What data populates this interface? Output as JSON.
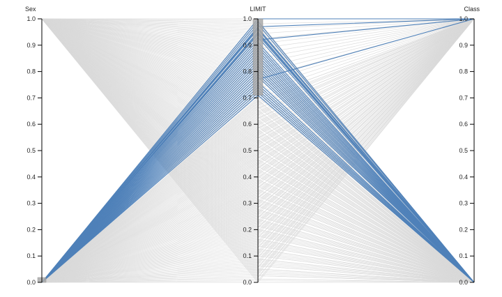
{
  "chart_data": {
    "type": "parallel-coordinates",
    "title": "",
    "axes": [
      {
        "name": "Sex",
        "range": [
          0,
          1
        ],
        "ticks": [
          "0.0",
          "0.1",
          "0.2",
          "0.3",
          "0.4",
          "0.5",
          "0.6",
          "0.7",
          "0.8",
          "0.9",
          "1.0"
        ],
        "brush": [
          0.0,
          0.02
        ]
      },
      {
        "name": "LIMIT",
        "range": [
          0,
          1
        ],
        "ticks": [
          "0.0",
          "0.1",
          "0.2",
          "0.3",
          "0.4",
          "0.5",
          "0.6",
          "0.7",
          "0.8",
          "0.9",
          "1.0"
        ],
        "brush": [
          0.71,
          1.0
        ]
      },
      {
        "name": "Class",
        "range": [
          0,
          1
        ],
        "ticks": [
          "0.0",
          "0.1",
          "0.2",
          "0.3",
          "0.4",
          "0.5",
          "0.6",
          "0.7",
          "0.8",
          "0.9",
          "1.0"
        ],
        "brush": null
      }
    ],
    "highlighted_lines": [
      [
        0.0,
        1.0,
        1.0
      ],
      [
        0.0,
        0.99,
        0.0
      ],
      [
        0.0,
        0.98,
        0.0
      ],
      [
        0.0,
        0.97,
        1.0
      ],
      [
        0.0,
        0.96,
        0.0
      ],
      [
        0.0,
        0.95,
        0.0
      ],
      [
        0.0,
        0.94,
        0.0
      ],
      [
        0.0,
        0.93,
        0.0
      ],
      [
        0.0,
        0.92,
        1.0
      ],
      [
        0.0,
        0.91,
        0.0
      ],
      [
        0.0,
        0.9,
        0.0
      ],
      [
        0.0,
        0.89,
        0.0
      ],
      [
        0.0,
        0.88,
        0.0
      ],
      [
        0.0,
        0.87,
        0.0
      ],
      [
        0.0,
        0.86,
        0.0
      ],
      [
        0.0,
        0.85,
        0.0
      ],
      [
        0.0,
        0.84,
        0.0
      ],
      [
        0.0,
        0.83,
        0.0
      ],
      [
        0.0,
        0.82,
        0.0
      ],
      [
        0.0,
        0.81,
        0.0
      ],
      [
        0.0,
        0.8,
        0.0
      ],
      [
        0.0,
        0.79,
        0.0
      ],
      [
        0.0,
        0.78,
        0.0
      ],
      [
        0.0,
        0.77,
        1.0
      ],
      [
        0.0,
        0.76,
        0.0
      ],
      [
        0.0,
        0.75,
        0.0
      ],
      [
        0.0,
        0.74,
        0.0
      ],
      [
        0.0,
        0.73,
        0.0
      ],
      [
        0.0,
        0.72,
        0.0
      ],
      [
        0.0,
        0.71,
        0.0
      ],
      [
        0.0,
        0.965,
        0.0
      ],
      [
        0.0,
        0.945,
        0.0
      ]
    ],
    "colors": {
      "highlight": "#4f81b9",
      "background": "#d9d9d9",
      "axis": "#000000",
      "brush_fill": "#aaaaaa"
    }
  }
}
